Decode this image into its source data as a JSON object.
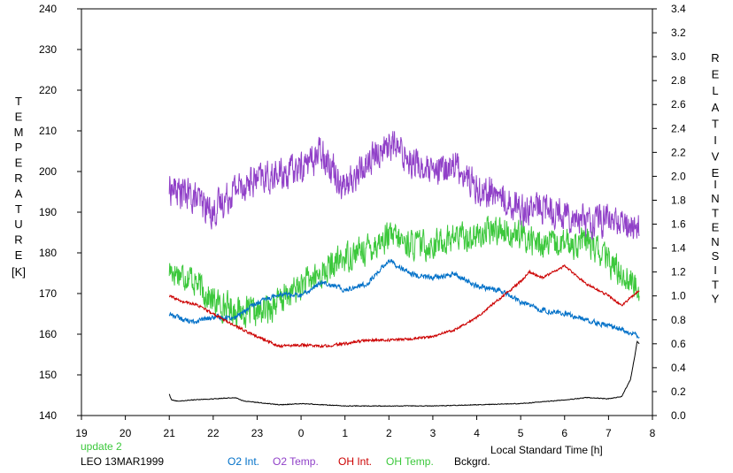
{
  "chart_data": {
    "type": "line",
    "x_ticks": [
      "19",
      "20",
      "21",
      "22",
      "23",
      "0",
      "1",
      "2",
      "3",
      "4",
      "5",
      "6",
      "7",
      "8"
    ],
    "left_axis": {
      "label_letters": [
        "T",
        "E",
        "M",
        "P",
        "E",
        "R",
        "A",
        "T",
        "U",
        "R",
        "E"
      ],
      "unit": "[K]",
      "ticks": [
        "140",
        "150",
        "160",
        "170",
        "180",
        "190",
        "200",
        "210",
        "220",
        "230",
        "240"
      ],
      "range": [
        140,
        240
      ]
    },
    "right_axis": {
      "label_letters_1": [
        "R",
        "E",
        "L",
        "A",
        "T",
        "I",
        "V",
        "E"
      ],
      "label_letters_2": [
        "I",
        "N",
        "T",
        "E",
        "N",
        "S",
        "I",
        "T",
        "Y"
      ],
      "ticks": [
        "0.0",
        "0.2",
        "0.4",
        "0.6",
        "0.8",
        "1.0",
        "1.2",
        "1.4",
        "1.6",
        "1.8",
        "2.0",
        "2.2",
        "2.4",
        "2.6",
        "2.8",
        "3.0",
        "3.2",
        "3.4"
      ],
      "range": [
        0,
        3.4
      ]
    },
    "x_range": [
      19,
      32
    ],
    "xlabel": "Local Standard Time [h]",
    "update_text": "update 2",
    "station_text": "LEO 13MAR1999",
    "series": [
      {
        "name": "O2 Int.",
        "axis": "right",
        "color": "#0070c8",
        "noise": 0.03,
        "x": [
          21.0,
          21.5,
          22.0,
          22.5,
          23.0,
          23.5,
          24.0,
          24.5,
          25.0,
          25.5,
          26.0,
          26.5,
          27.0,
          27.5,
          28.0,
          28.5,
          29.0,
          29.5,
          30.0,
          30.5,
          31.0,
          31.7
        ],
        "y": [
          0.85,
          0.78,
          0.82,
          0.82,
          0.94,
          1.02,
          1.0,
          1.12,
          1.05,
          1.1,
          1.3,
          1.18,
          1.15,
          1.18,
          1.08,
          1.05,
          0.95,
          0.88,
          0.85,
          0.8,
          0.75,
          0.67
        ]
      },
      {
        "name": "O2 Temp.",
        "axis": "left",
        "color": "#9040c8",
        "noise": 5.5,
        "x": [
          21.0,
          21.5,
          22.0,
          22.5,
          23.0,
          23.5,
          24.0,
          24.5,
          25.0,
          25.5,
          26.0,
          26.5,
          27.0,
          27.5,
          28.0,
          28.5,
          29.0,
          29.5,
          30.0,
          30.5,
          31.0,
          31.7
        ],
        "y": [
          196,
          194,
          190,
          196,
          198,
          199,
          201,
          205,
          196,
          202,
          207,
          203,
          199,
          202,
          196,
          194,
          191,
          191,
          190,
          188,
          188,
          186
        ]
      },
      {
        "name": "OH Int.",
        "axis": "right",
        "color": "#cc0000",
        "noise": 0.015,
        "x": [
          21.0,
          21.3,
          21.6,
          22.0,
          22.5,
          23.0,
          23.5,
          24.0,
          24.5,
          25.0,
          25.5,
          26.0,
          26.5,
          27.0,
          27.5,
          28.0,
          28.5,
          29.0,
          29.2,
          29.5,
          30.0,
          30.5,
          31.0,
          31.3,
          31.7
        ],
        "y": [
          1.0,
          0.95,
          0.93,
          0.85,
          0.75,
          0.66,
          0.58,
          0.59,
          0.58,
          0.6,
          0.63,
          0.63,
          0.64,
          0.66,
          0.72,
          0.82,
          0.97,
          1.12,
          1.2,
          1.15,
          1.25,
          1.1,
          1.0,
          0.92,
          1.05
        ]
      },
      {
        "name": "OH Temp.",
        "axis": "left",
        "color": "#3cc83c",
        "noise": 5.0,
        "x": [
          21.0,
          21.5,
          22.0,
          22.5,
          23.0,
          23.5,
          24.0,
          24.5,
          25.0,
          25.5,
          26.0,
          26.5,
          27.0,
          27.5,
          28.0,
          28.5,
          29.0,
          29.5,
          30.0,
          30.5,
          31.0,
          31.7
        ],
        "y": [
          176,
          174,
          168,
          166,
          165,
          168,
          172,
          175,
          179,
          181,
          184,
          182,
          182,
          184,
          184,
          186,
          184,
          182,
          182,
          183,
          178,
          171
        ]
      },
      {
        "name": "Bckgrd.",
        "axis": "right",
        "color": "#000000",
        "noise": 0.004,
        "x": [
          21.0,
          21.05,
          21.2,
          21.5,
          22.0,
          22.5,
          22.7,
          23.0,
          23.5,
          24.0,
          25.0,
          26.0,
          27.0,
          28.0,
          29.0,
          30.0,
          30.5,
          31.0,
          31.3,
          31.5,
          31.6,
          31.65,
          31.7
        ],
        "y": [
          0.18,
          0.13,
          0.12,
          0.13,
          0.14,
          0.15,
          0.12,
          0.11,
          0.09,
          0.1,
          0.08,
          0.08,
          0.08,
          0.09,
          0.1,
          0.13,
          0.15,
          0.14,
          0.16,
          0.3,
          0.5,
          0.62,
          0.6
        ]
      }
    ]
  }
}
